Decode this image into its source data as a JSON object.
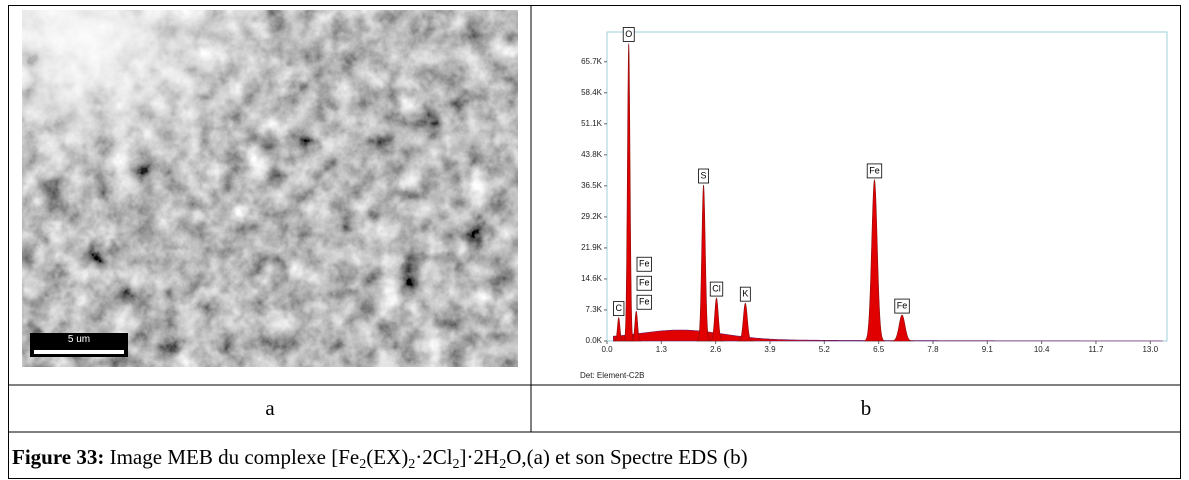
{
  "sem_image": {
    "scale_bar": "5 um"
  },
  "spectrum": {
    "type": "spectrum",
    "xlim": [
      0,
      13.4
    ],
    "ylim": [
      0,
      72700
    ],
    "xticks": [
      {
        "value": 0,
        "label": "0.0"
      },
      1.3,
      2.6,
      3.9,
      5.2,
      6.5,
      7.8,
      9.1,
      10.4,
      11.7,
      {
        "value": 13,
        "label": "13.0"
      }
    ],
    "yticks": [
      {
        "value": 0,
        "label": "0.0K"
      },
      {
        "value": 7300,
        "label": "7.3K"
      },
      {
        "value": 14600,
        "label": "14.6K"
      },
      {
        "value": 21900,
        "label": "21.9K"
      },
      {
        "value": 29200,
        "label": "29.2K"
      },
      {
        "value": 36500,
        "label": "36.5K"
      },
      {
        "value": 43800,
        "label": "43.8K"
      },
      {
        "value": 51100,
        "label": "51.1K"
      },
      {
        "value": 58400,
        "label": "58.4K"
      },
      {
        "value": 65700,
        "label": "65.7K"
      }
    ],
    "color": "#e00000",
    "peaks": [
      {
        "labels": [
          "C"
        ],
        "energy": 0.28,
        "counts": 5500
      },
      {
        "labels": [
          "O"
        ],
        "energy": 0.52,
        "counts": 70000
      },
      {
        "labels": [
          "Fe",
          "Fe",
          "Fe"
        ],
        "energy": 0.7,
        "counts": 7000
      },
      {
        "labels": [
          "S"
        ],
        "energy": 2.31,
        "counts": 36700
      },
      {
        "labels": [
          "Cl"
        ],
        "energy": 2.62,
        "counts": 10100
      },
      {
        "labels": [
          "K"
        ],
        "energy": 3.31,
        "counts": 8900
      },
      {
        "labels": [
          "Fe"
        ],
        "energy": 6.4,
        "counts": 37900
      },
      {
        "labels": [
          "Fe"
        ],
        "energy": 7.06,
        "counts": 6100
      }
    ],
    "detector": "Det: Element-C2B"
  },
  "panel_labels": [
    "a",
    "b"
  ],
  "caption": {
    "label": "Figure 33:",
    "segments": [
      {
        "text": " Image MEB du complexe [Fe"
      },
      {
        "sub": "2"
      },
      {
        "text": "(EX)"
      },
      {
        "sub": "2"
      },
      {
        "text": "·2Cl"
      },
      {
        "sub": "2"
      },
      {
        "text": "]·2H"
      },
      {
        "sub": "2"
      },
      {
        "text": "O,(a) et son  Spectre EDS (b)"
      }
    ]
  }
}
